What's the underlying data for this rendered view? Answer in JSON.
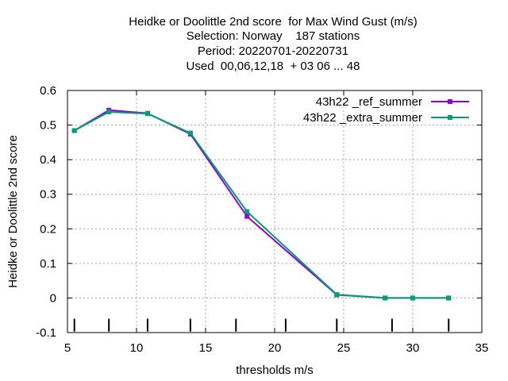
{
  "chart_data": {
    "type": "line",
    "title_lines": [
      "Heidke or Doolittle 2nd score  for Max Wind Gust (m/s)",
      "Selection: Norway    187 stations",
      "Period: 20220701-20220731",
      "Used  00,06,12,18  + 03 06 ... 48"
    ],
    "xlabel": "thresholds m/s",
    "ylabel": "Heidke or Doolittle 2nd score",
    "xlim": [
      5,
      35
    ],
    "ylim": [
      -0.1,
      0.6
    ],
    "xticks": [
      5,
      10,
      15,
      20,
      25,
      30,
      35
    ],
    "yticks": [
      -0.1,
      0,
      0.1,
      0.2,
      0.3,
      0.4,
      0.5,
      0.6
    ],
    "grid": true,
    "legend_position": "top-right",
    "threshold_marks": [
      5.5,
      8,
      10.8,
      13.9,
      17.2,
      20.8,
      24.5,
      28.5,
      32.6
    ],
    "series": [
      {
        "name": "43h22 _ref_summer",
        "color": "#9400d3",
        "x": [
          5.5,
          8.0,
          10.8,
          13.9,
          18.0,
          24.5,
          28.0,
          30.0,
          32.6
        ],
        "y": [
          0.484,
          0.543,
          0.534,
          0.474,
          0.236,
          0.009,
          0.0,
          0.0,
          0.0
        ]
      },
      {
        "name": "43h22 _extra_summer",
        "color": "#009e73",
        "x": [
          5.5,
          8.0,
          10.8,
          13.9,
          18.0,
          24.5,
          28.0,
          30.0,
          32.6
        ],
        "y": [
          0.484,
          0.538,
          0.533,
          0.477,
          0.25,
          0.01,
          0.0,
          0.0,
          0.0
        ]
      }
    ]
  }
}
